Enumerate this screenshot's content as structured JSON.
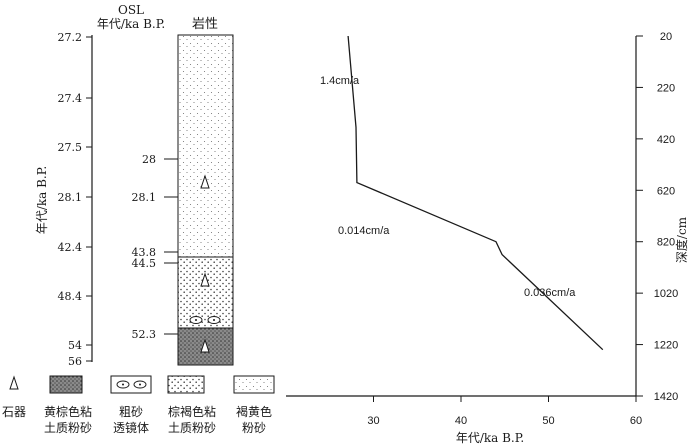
{
  "chart_data": [
    {
      "type": "strat-column",
      "header_top": "OSL",
      "ylabel": "年代/ka B.P.",
      "column_title": "岩性",
      "age_axis_ticks": [
        "27.2",
        "27.4",
        "27.5",
        "28.1",
        "42.4",
        "48.4",
        "54",
        "56"
      ],
      "osl_ages": [
        "28",
        "28.1",
        "43.8",
        "44.5",
        "52.3"
      ],
      "units": [
        {
          "lithology": "褐黄色粉砂",
          "top_ka": 27.2,
          "bottom_ka": 43.8,
          "artifact": true
        },
        {
          "lithology": "棕褐色粘土质粉砂",
          "top_ka": 43.8,
          "bottom_ka": 52.3,
          "artifact": true,
          "lens": "粗砂透镜体"
        },
        {
          "lithology": "黄棕色粘土质粉砂",
          "top_ka": 52.3,
          "bottom_ka": 56,
          "artifact": true
        }
      ]
    },
    {
      "type": "line",
      "xlabel": "年代/ka B.P.",
      "ylabel": "深度/cm",
      "xlim": [
        20,
        60
      ],
      "ylim": [
        20,
        1420
      ],
      "y_inverted": true,
      "y_axis_side": "right",
      "x_ticks": [
        "30",
        "40",
        "50",
        "60"
      ],
      "y_ticks": [
        "20",
        "220",
        "420",
        "620",
        "820",
        "1020",
        "1220",
        "1420"
      ],
      "points": [
        {
          "x": 27.1,
          "y": 20
        },
        {
          "x": 28.0,
          "y": 375
        },
        {
          "x": 28.1,
          "y": 590
        },
        {
          "x": 44.0,
          "y": 820
        },
        {
          "x": 44.7,
          "y": 870
        },
        {
          "x": 56.2,
          "y": 1240
        }
      ],
      "annotations": [
        "1.4cm/a",
        "0.014cm/a",
        "0.036cm/a"
      ]
    }
  ],
  "legend": {
    "items": [
      {
        "key": "artifact",
        "lines": [
          "石器"
        ]
      },
      {
        "key": "yellow-brown-clayey-silt",
        "lines": [
          "黄棕色粘",
          "土质粉砂"
        ]
      },
      {
        "key": "coarse-sand-lens",
        "lines": [
          "粗砂",
          "透镜体"
        ]
      },
      {
        "key": "brown-clayey-silt",
        "lines": [
          "棕褐色粘",
          "土质粉砂"
        ]
      },
      {
        "key": "tawny-silt",
        "lines": [
          "褐黄色",
          "粉砂"
        ]
      }
    ]
  },
  "colors": {
    "ink": "#1a1a1a",
    "dark_fill": "#777777",
    "stipple": "#555555"
  }
}
